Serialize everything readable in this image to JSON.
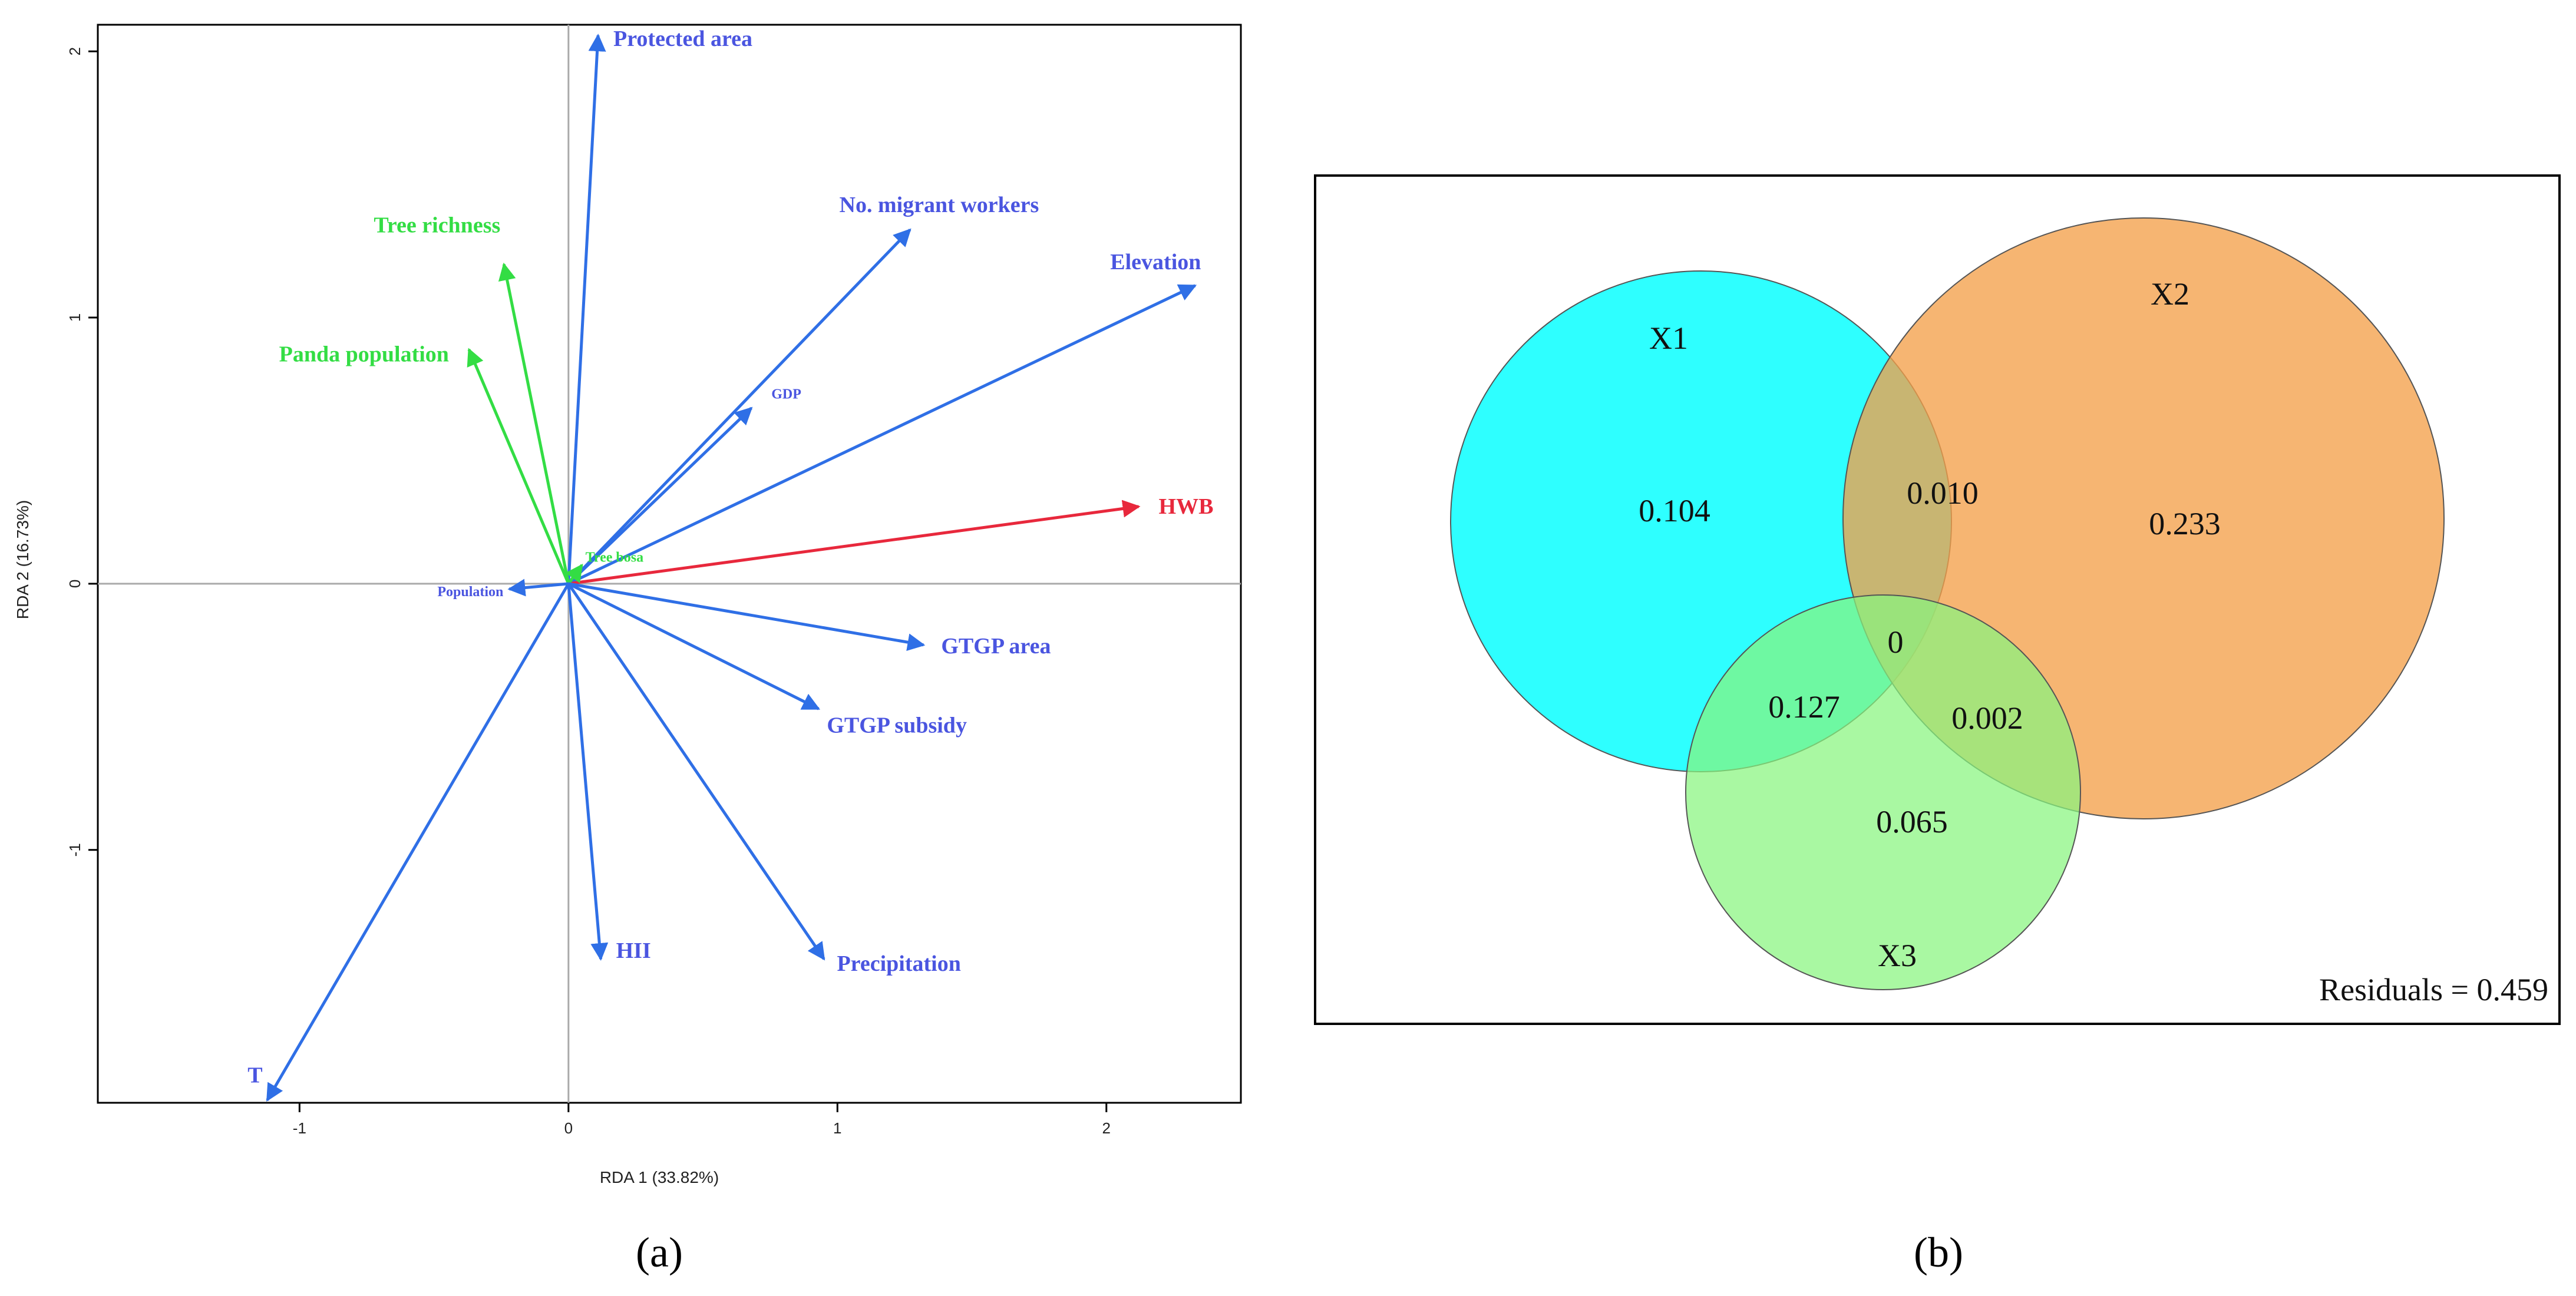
{
  "chart_data": [
    {
      "type": "biplot",
      "xlabel": "RDA 1 (33.82%)",
      "ylabel": "RDA 2 (16.73%)",
      "xlim": [
        -1.75,
        2.5
      ],
      "ylim": [
        -1.95,
        2.1
      ],
      "xticks": [
        "-1",
        "0",
        "1",
        "2"
      ],
      "yticks": [
        "2",
        "1",
        "0",
        "-1"
      ],
      "xtick_values": [
        -1,
        0,
        1,
        2
      ],
      "ytick_values": [
        2,
        1,
        0,
        -1
      ],
      "vectors": [
        {
          "name": "Protected area",
          "x": 0.11,
          "y": 2.06,
          "color": "#2f6fe6",
          "label_color": "#4a55e0",
          "group": "explanatory"
        },
        {
          "name": "No. migrant workers",
          "x": 1.27,
          "y": 1.33,
          "color": "#2f6fe6",
          "label_color": "#4a55e0",
          "group": "explanatory"
        },
        {
          "name": "Elevation",
          "x": 2.33,
          "y": 1.12,
          "color": "#2f6fe6",
          "label_color": "#4a55e0",
          "group": "explanatory"
        },
        {
          "name": "GDP",
          "x": 0.68,
          "y": 0.66,
          "color": "#2f6fe6",
          "label_color": "#4a55e0",
          "group": "explanatory",
          "small": true
        },
        {
          "name": "HWB",
          "x": 2.12,
          "y": 0.29,
          "color": "#e8283c",
          "label_color": "#e8283c",
          "group": "response"
        },
        {
          "name": "Tree richness",
          "x": -0.24,
          "y": 1.2,
          "color": "#33dd44",
          "label_color": "#33dd44",
          "group": "biodiversity"
        },
        {
          "name": "Panda population",
          "x": -0.37,
          "y": 0.88,
          "color": "#33dd44",
          "label_color": "#33dd44",
          "group": "biodiversity"
        },
        {
          "name": "Tree bosa",
          "x": 0.05,
          "y": 0.07,
          "color": "#33dd44",
          "label_color": "#33dd44",
          "group": "biodiversity",
          "small": true
        },
        {
          "name": "Population",
          "x": -0.22,
          "y": -0.02,
          "color": "#2f6fe6",
          "label_color": "#4a55e0",
          "group": "explanatory",
          "small": true
        },
        {
          "name": "GTGP area",
          "x": 1.32,
          "y": -0.23,
          "color": "#2f6fe6",
          "label_color": "#4a55e0",
          "group": "explanatory"
        },
        {
          "name": "GTGP subsidy",
          "x": 0.93,
          "y": -0.47,
          "color": "#2f6fe6",
          "label_color": "#4a55e0",
          "group": "explanatory"
        },
        {
          "name": "HII",
          "x": 0.12,
          "y": -1.41,
          "color": "#2f6fe6",
          "label_color": "#4a55e0",
          "group": "explanatory"
        },
        {
          "name": "Precipitation",
          "x": 0.95,
          "y": -1.41,
          "color": "#2f6fe6",
          "label_color": "#4a55e0",
          "group": "explanatory"
        },
        {
          "name": "T",
          "x": -1.12,
          "y": -1.94,
          "color": "#2f6fe6",
          "label_color": "#4a55e0",
          "group": "explanatory"
        }
      ],
      "panel_label": "(a)"
    },
    {
      "type": "venn",
      "sets": [
        {
          "name": "X1",
          "color": "#00ffff"
        },
        {
          "name": "X2",
          "color": "#f4a04a"
        },
        {
          "name": "X3",
          "color": "#88f57e"
        }
      ],
      "regions": [
        {
          "id": "x1_only",
          "value": "0.104"
        },
        {
          "id": "x1_x2",
          "value": "0.010"
        },
        {
          "id": "x2_only",
          "value": "0.233"
        },
        {
          "id": "x1_x2_x3",
          "value": "0"
        },
        {
          "id": "x1_x3",
          "value": "0.127"
        },
        {
          "id": "x2_x3",
          "value": "0.002"
        },
        {
          "id": "x3_only",
          "value": "0.065"
        }
      ],
      "residuals_label": "Residuals = 0.459",
      "panel_label": "(b)"
    }
  ]
}
